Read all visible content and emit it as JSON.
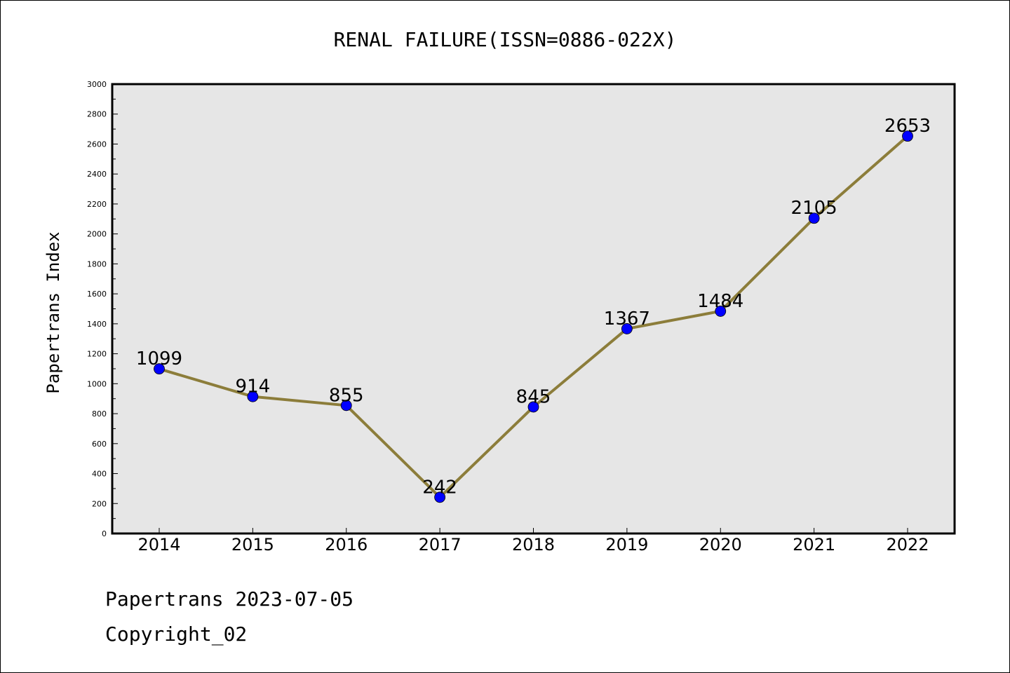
{
  "chart_data": {
    "type": "line",
    "title": "RENAL FAILURE(ISSN=0886-022X)",
    "ylabel": "Papertrans Index",
    "xlabel": "",
    "categories": [
      "2014",
      "2015",
      "2016",
      "2017",
      "2018",
      "2019",
      "2020",
      "2021",
      "2022"
    ],
    "series": [
      {
        "values": [
          1099,
          914,
          855,
          242,
          845,
          1367,
          1484,
          2105,
          2653
        ]
      }
    ],
    "ylim": [
      0,
      3000
    ],
    "yticks": [
      0,
      200,
      400,
      600,
      800,
      1000,
      1200,
      1400,
      1600,
      1800,
      2000,
      2200,
      2400,
      2600,
      2800,
      3000
    ],
    "grid": false,
    "legend": "none",
    "line_color": "#8c7d3a",
    "marker_color": "#0000ff",
    "plot_background": "#e6e6e6"
  },
  "footer": {
    "line1": "Papertrans 2023-07-05",
    "line2": "Copyright_02"
  }
}
